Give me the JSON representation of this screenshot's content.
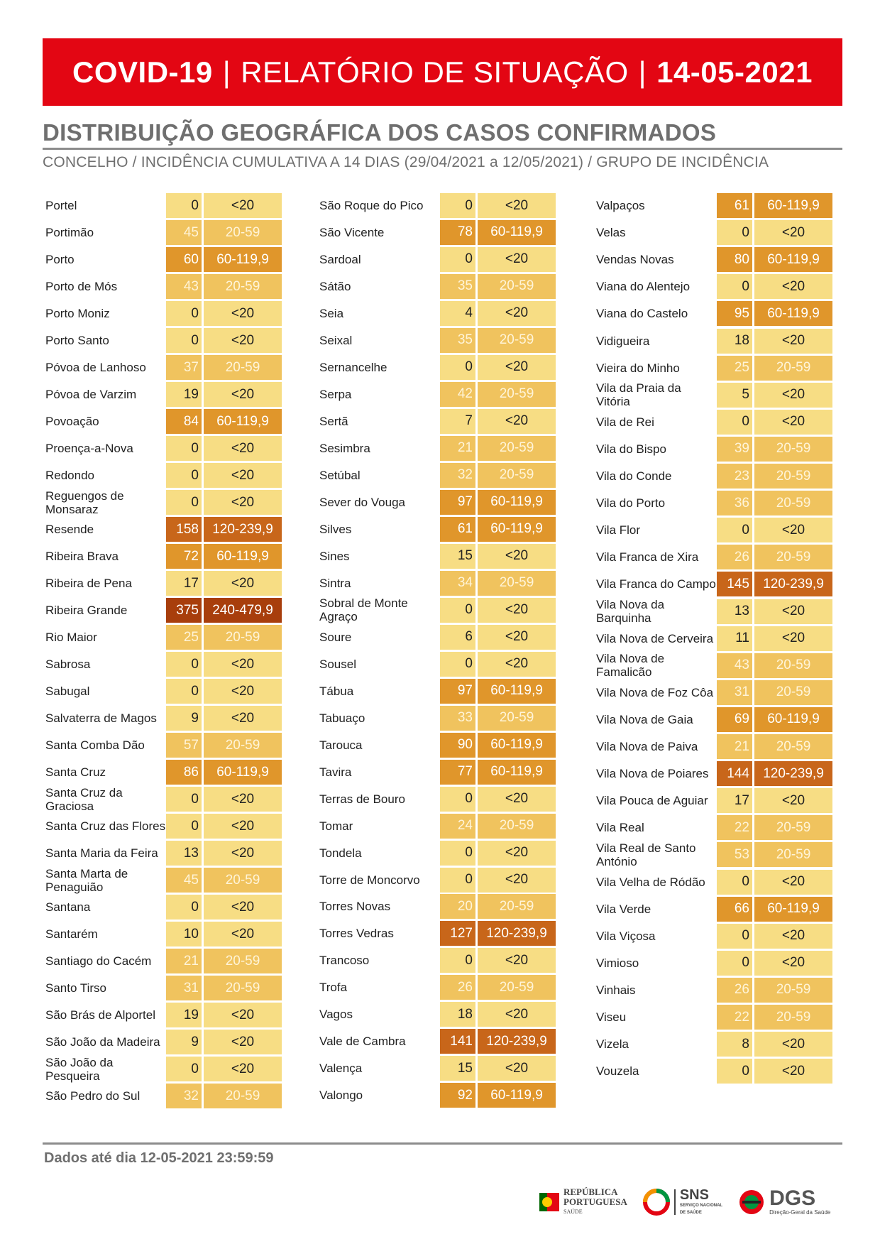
{
  "header": {
    "covid": "COVID-19",
    "sep1": "|",
    "report": "RELATÓRIO DE SITUAÇÃO",
    "sep2": "|",
    "date": "14-05-2021"
  },
  "section_title": "DISTRIBUIÇÃO GEOGRÁFICA DOS CASOS CONFIRMADOS",
  "subtitle": "CONCELHO / INCIDÊNCIA CUMULATIVA A 14 DIAS (29/04/2021 a 12/05/2021) / GRUPO DE INCIDÊNCIA",
  "columns": [
    [
      {
        "name": "Portel",
        "value": "0",
        "group": "<20"
      },
      {
        "name": "Portimão",
        "value": "45",
        "group": "20-59"
      },
      {
        "name": "Porto",
        "value": "60",
        "group": "60-119,9"
      },
      {
        "name": "Porto de Mós",
        "value": "43",
        "group": "20-59"
      },
      {
        "name": "Porto Moniz",
        "value": "0",
        "group": "<20"
      },
      {
        "name": "Porto Santo",
        "value": "0",
        "group": "<20"
      },
      {
        "name": "Póvoa de Lanhoso",
        "value": "37",
        "group": "20-59"
      },
      {
        "name": "Póvoa de Varzim",
        "value": "19",
        "group": "<20"
      },
      {
        "name": "Povoação",
        "value": "84",
        "group": "60-119,9"
      },
      {
        "name": "Proença-a-Nova",
        "value": "0",
        "group": "<20"
      },
      {
        "name": "Redondo",
        "value": "0",
        "group": "<20"
      },
      {
        "name": "Reguengos de Monsaraz",
        "value": "0",
        "group": "<20"
      },
      {
        "name": "Resende",
        "value": "158",
        "group": "120-239,9"
      },
      {
        "name": "Ribeira Brava",
        "value": "72",
        "group": "60-119,9"
      },
      {
        "name": "Ribeira de Pena",
        "value": "17",
        "group": "<20"
      },
      {
        "name": "Ribeira Grande",
        "value": "375",
        "group": "240-479,9"
      },
      {
        "name": "Rio Maior",
        "value": "25",
        "group": "20-59"
      },
      {
        "name": "Sabrosa",
        "value": "0",
        "group": "<20"
      },
      {
        "name": "Sabugal",
        "value": "0",
        "group": "<20"
      },
      {
        "name": "Salvaterra de Magos",
        "value": "9",
        "group": "<20"
      },
      {
        "name": "Santa Comba Dão",
        "value": "57",
        "group": "20-59"
      },
      {
        "name": "Santa Cruz",
        "value": "86",
        "group": "60-119,9"
      },
      {
        "name": "Santa Cruz da Graciosa",
        "value": "0",
        "group": "<20"
      },
      {
        "name": "Santa Cruz das Flores",
        "value": "0",
        "group": "<20"
      },
      {
        "name": "Santa Maria da Feira",
        "value": "13",
        "group": "<20"
      },
      {
        "name": "Santa Marta de Penaguião",
        "value": "45",
        "group": "20-59"
      },
      {
        "name": "Santana",
        "value": "0",
        "group": "<20"
      },
      {
        "name": "Santarém",
        "value": "10",
        "group": "<20"
      },
      {
        "name": "Santiago do Cacém",
        "value": "21",
        "group": "20-59"
      },
      {
        "name": "Santo Tirso",
        "value": "31",
        "group": "20-59"
      },
      {
        "name": "São Brás de Alportel",
        "value": "19",
        "group": "<20"
      },
      {
        "name": "São João da Madeira",
        "value": "9",
        "group": "<20"
      },
      {
        "name": "São João da Pesqueira",
        "value": "0",
        "group": "<20"
      },
      {
        "name": "São Pedro do Sul",
        "value": "32",
        "group": "20-59"
      }
    ],
    [
      {
        "name": "São Roque do Pico",
        "value": "0",
        "group": "<20"
      },
      {
        "name": "São Vicente",
        "value": "78",
        "group": "60-119,9"
      },
      {
        "name": "Sardoal",
        "value": "0",
        "group": "<20"
      },
      {
        "name": "Sátão",
        "value": "35",
        "group": "20-59"
      },
      {
        "name": "Seia",
        "value": "4",
        "group": "<20"
      },
      {
        "name": "Seixal",
        "value": "35",
        "group": "20-59"
      },
      {
        "name": "Sernancelhe",
        "value": "0",
        "group": "<20"
      },
      {
        "name": "Serpa",
        "value": "42",
        "group": "20-59"
      },
      {
        "name": "Sertã",
        "value": "7",
        "group": "<20"
      },
      {
        "name": "Sesimbra",
        "value": "21",
        "group": "20-59"
      },
      {
        "name": "Setúbal",
        "value": "32",
        "group": "20-59"
      },
      {
        "name": "Sever do Vouga",
        "value": "97",
        "group": "60-119,9"
      },
      {
        "name": "Silves",
        "value": "61",
        "group": "60-119,9"
      },
      {
        "name": "Sines",
        "value": "15",
        "group": "<20"
      },
      {
        "name": "Sintra",
        "value": "34",
        "group": "20-59"
      },
      {
        "name": "Sobral de Monte Agraço",
        "value": "0",
        "group": "<20"
      },
      {
        "name": "Soure",
        "value": "6",
        "group": "<20"
      },
      {
        "name": "Sousel",
        "value": "0",
        "group": "<20"
      },
      {
        "name": "Tábua",
        "value": "97",
        "group": "60-119,9"
      },
      {
        "name": "Tabuaço",
        "value": "33",
        "group": "20-59"
      },
      {
        "name": "Tarouca",
        "value": "90",
        "group": "60-119,9"
      },
      {
        "name": "Tavira",
        "value": "77",
        "group": "60-119,9"
      },
      {
        "name": "Terras de Bouro",
        "value": "0",
        "group": "<20"
      },
      {
        "name": "Tomar",
        "value": "24",
        "group": "20-59"
      },
      {
        "name": "Tondela",
        "value": "0",
        "group": "<20"
      },
      {
        "name": "Torre de Moncorvo",
        "value": "0",
        "group": "<20"
      },
      {
        "name": "Torres Novas",
        "value": "20",
        "group": "20-59"
      },
      {
        "name": "Torres Vedras",
        "value": "127",
        "group": "120-239,9"
      },
      {
        "name": "Trancoso",
        "value": "0",
        "group": "<20"
      },
      {
        "name": "Trofa",
        "value": "26",
        "group": "20-59"
      },
      {
        "name": "Vagos",
        "value": "18",
        "group": "<20"
      },
      {
        "name": "Vale de Cambra",
        "value": "141",
        "group": "120-239,9"
      },
      {
        "name": "Valença",
        "value": "15",
        "group": "<20"
      },
      {
        "name": "Valongo",
        "value": "92",
        "group": "60-119,9"
      }
    ],
    [
      {
        "name": "Valpaços",
        "value": "61",
        "group": "60-119,9"
      },
      {
        "name": "Velas",
        "value": "0",
        "group": "<20"
      },
      {
        "name": "Vendas Novas",
        "value": "80",
        "group": "60-119,9"
      },
      {
        "name": "Viana do Alentejo",
        "value": "0",
        "group": "<20"
      },
      {
        "name": "Viana do Castelo",
        "value": "95",
        "group": "60-119,9"
      },
      {
        "name": "Vidigueira",
        "value": "18",
        "group": "<20"
      },
      {
        "name": "Vieira do Minho",
        "value": "25",
        "group": "20-59"
      },
      {
        "name": "Vila da Praia da Vitória",
        "value": "5",
        "group": "<20"
      },
      {
        "name": "Vila de Rei",
        "value": "0",
        "group": "<20"
      },
      {
        "name": "Vila do Bispo",
        "value": "39",
        "group": "20-59"
      },
      {
        "name": "Vila do Conde",
        "value": "23",
        "group": "20-59"
      },
      {
        "name": "Vila do Porto",
        "value": "36",
        "group": "20-59"
      },
      {
        "name": "Vila Flor",
        "value": "0",
        "group": "<20"
      },
      {
        "name": "Vila Franca de Xira",
        "value": "26",
        "group": "20-59"
      },
      {
        "name": "Vila Franca do Campo",
        "value": "145",
        "group": "120-239,9"
      },
      {
        "name": "Vila Nova da Barquinha",
        "value": "13",
        "group": "<20"
      },
      {
        "name": "Vila Nova de Cerveira",
        "value": "11",
        "group": "<20"
      },
      {
        "name": "Vila Nova de Famalicão",
        "value": "43",
        "group": "20-59"
      },
      {
        "name": "Vila Nova de Foz Côa",
        "value": "31",
        "group": "20-59"
      },
      {
        "name": "Vila Nova de Gaia",
        "value": "69",
        "group": "60-119,9"
      },
      {
        "name": "Vila Nova de Paiva",
        "value": "21",
        "group": "20-59"
      },
      {
        "name": "Vila Nova de Poiares",
        "value": "144",
        "group": "120-239,9"
      },
      {
        "name": "Vila Pouca de Aguiar",
        "value": "17",
        "group": "<20"
      },
      {
        "name": "Vila Real",
        "value": "22",
        "group": "20-59"
      },
      {
        "name": "Vila Real de Santo António",
        "value": "53",
        "group": "20-59"
      },
      {
        "name": "Vila Velha de Ródão",
        "value": "0",
        "group": "<20"
      },
      {
        "name": "Vila Verde",
        "value": "66",
        "group": "60-119,9"
      },
      {
        "name": "Vila Viçosa",
        "value": "0",
        "group": "<20"
      },
      {
        "name": "Vimioso",
        "value": "0",
        "group": "<20"
      },
      {
        "name": "Vinhais",
        "value": "26",
        "group": "20-59"
      },
      {
        "name": "Viseu",
        "value": "22",
        "group": "20-59"
      },
      {
        "name": "Vizela",
        "value": "8",
        "group": "<20"
      },
      {
        "name": "Vouzela",
        "value": "0",
        "group": "<20"
      }
    ]
  ],
  "group_colors": {
    "<20": "#f7dd84",
    "20-59": "#f0c35e",
    "60-119,9": "#e0962b",
    "120-239,9": "#c8661a",
    "240-479,9": "#a83e0c"
  },
  "footer": "Dados até dia 12-05-2021 23:59:59",
  "logos": {
    "republica_line1": "REPÚBLICA",
    "republica_line2": "PORTUGUESA",
    "republica_line3": "SAÚDE",
    "sns": "SNS",
    "sns_sub1": "SERVIÇO NACIONAL",
    "sns_sub2": "DE SAÚDE",
    "dgs": "DGS",
    "dgs_sub": "Direção-Geral da Saúde"
  }
}
